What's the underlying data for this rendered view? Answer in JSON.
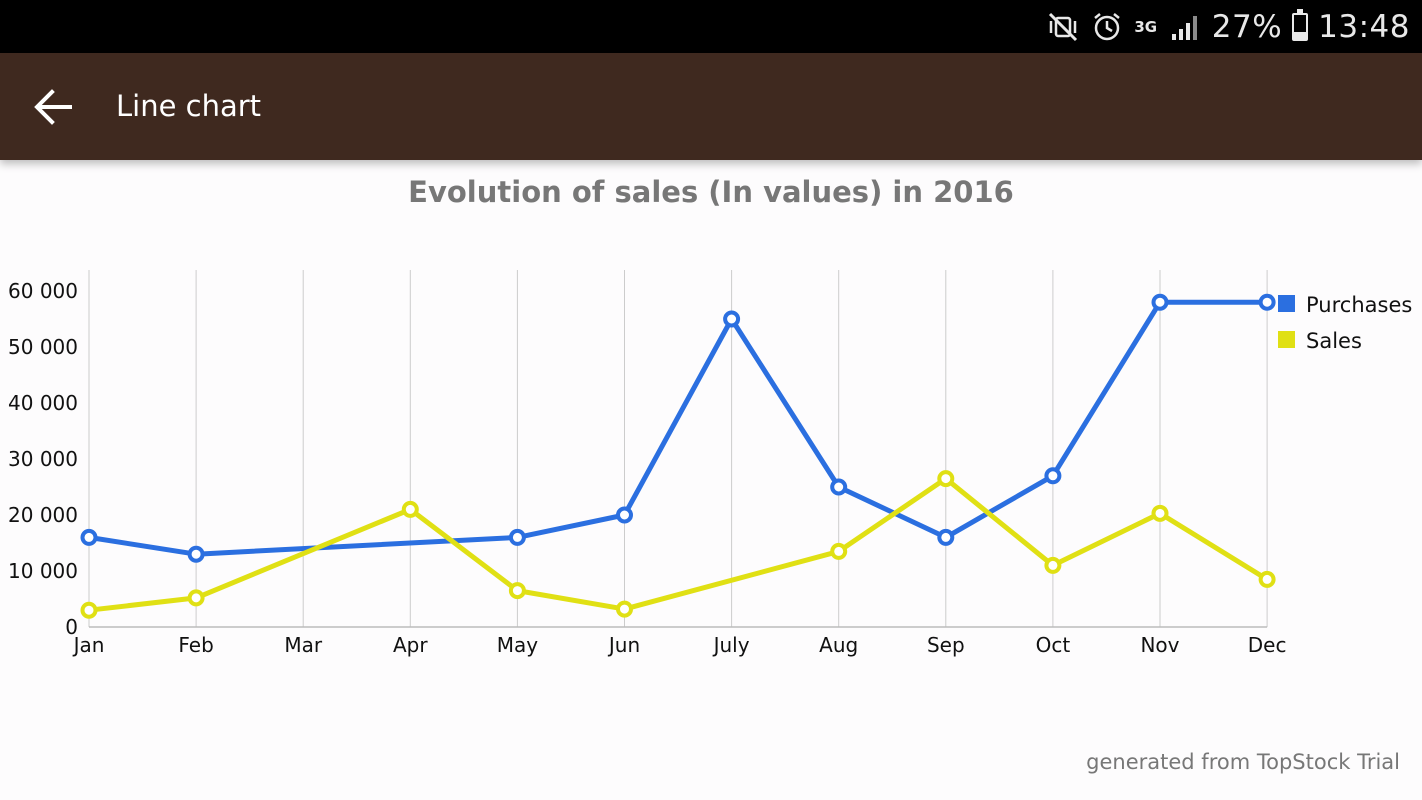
{
  "status_bar": {
    "icons": [
      "mute-vibrate-icon",
      "alarm-icon",
      "signal-icon"
    ],
    "network": "3G",
    "battery": "27%",
    "battery_level": 0.27,
    "time": "13:48"
  },
  "app_bar": {
    "back_icon": "arrow-back-icon",
    "title": "Line chart"
  },
  "chart_data": {
    "type": "line",
    "title": "Evolution of sales (In values) in 2016",
    "categories": [
      "Jan",
      "Feb",
      "Mar",
      "Apr",
      "May",
      "Jun",
      "July",
      "Aug",
      "Sep",
      "Oct",
      "Nov",
      "Dec"
    ],
    "series": [
      {
        "name": "Purchases",
        "color": "#2b6fe0",
        "values": [
          16000,
          13000,
          null,
          null,
          16000,
          20000,
          55000,
          25000,
          16000,
          27000,
          58000,
          58000
        ]
      },
      {
        "name": "Sales",
        "color": "#e0e014",
        "values": [
          3000,
          5200,
          null,
          21000,
          6500,
          3200,
          null,
          13500,
          26500,
          11000,
          20300,
          8500
        ]
      }
    ],
    "yticks": [
      0,
      10000,
      20000,
      30000,
      40000,
      50000,
      60000
    ],
    "ytick_labels": [
      "0",
      "10 000",
      "20 000",
      "30 000",
      "40 000",
      "50 000",
      "60 000"
    ],
    "ylim": [
      0,
      64000
    ],
    "grid": "vertical",
    "legend": "top-right"
  },
  "footer": {
    "note": "generated from TopStock Trial"
  }
}
